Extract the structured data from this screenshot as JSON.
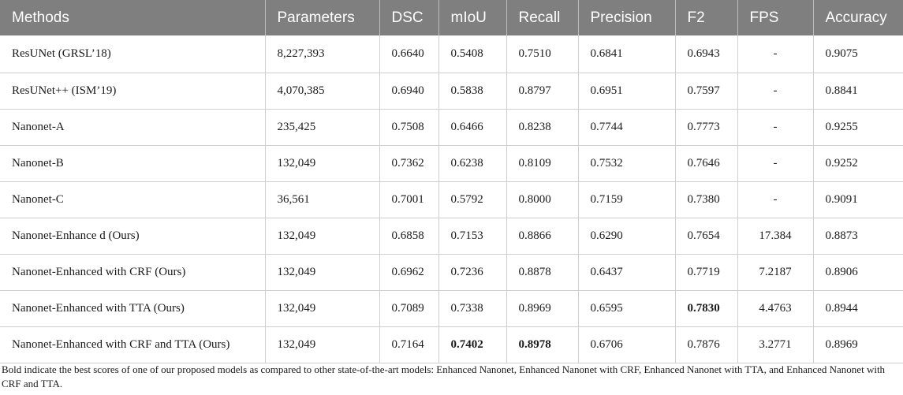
{
  "table": {
    "columns": [
      "Methods",
      "Parameters",
      "DSC",
      "mIoU",
      "Recall",
      "Precision",
      "F2",
      "FPS",
      "Accuracy"
    ],
    "rows": [
      [
        "ResUNet (GRSL’18)",
        "8,227,393",
        "0.6640",
        "0.5408",
        "0.7510",
        "0.6841",
        "0.6943",
        "-",
        "0.9075"
      ],
      [
        "ResUNet++ (ISM’19)",
        "4,070,385",
        "0.6940",
        "0.5838",
        "0.8797",
        "0.6951",
        "0.7597",
        "-",
        "0.8841"
      ],
      [
        "Nanonet-A",
        "235,425",
        "0.7508",
        "0.6466",
        "0.8238",
        "0.7744",
        "0.7773",
        "-",
        "0.9255"
      ],
      [
        "Nanonet-B",
        "132,049",
        "0.7362",
        "0.6238",
        "0.8109",
        "0.7532",
        "0.7646",
        "-",
        "0.9252"
      ],
      [
        "Nanonet-C",
        "36,561",
        "0.7001",
        "0.5792",
        "0.8000",
        "0.7159",
        "0.7380",
        "-",
        "0.9091"
      ],
      [
        "Nanonet-Enhance d (Ours)",
        "132,049",
        "0.6858",
        "0.7153",
        "0.8866",
        "0.6290",
        "0.7654",
        "17.384",
        "0.8873"
      ],
      [
        "Nanonet-Enhanced with CRF (Ours)",
        "132,049",
        "0.6962",
        "0.7236",
        "0.8878",
        "0.6437",
        "0.7719",
        "7.2187",
        "0.8906"
      ],
      [
        "Nanonet-Enhanced with TTA (Ours)",
        "132,049",
        "0.7089",
        "0.7338",
        "0.8969",
        "0.6595",
        "0.7830",
        "4.4763",
        "0.8944"
      ],
      [
        "Nanonet-Enhanced with CRF and TTA (Ours)",
        "132,049",
        "0.7164",
        "0.7402",
        "0.8978",
        "0.6706",
        "0.7876",
        "3.2771",
        "0.8969"
      ]
    ]
  },
  "footnote": "Bold indicate the best scores of one of our proposed models as compared to other state-of-the-art models: Enhanced Nanonet, Enhanced Nanonet with CRF, Enhanced Nanonet with TTA, and Enhanced Nanonet with CRF and TTA.",
  "colors": {
    "header_bg": "#7f7f7f",
    "header_text": "#ffffff",
    "grid": "#cfcfcf"
  }
}
